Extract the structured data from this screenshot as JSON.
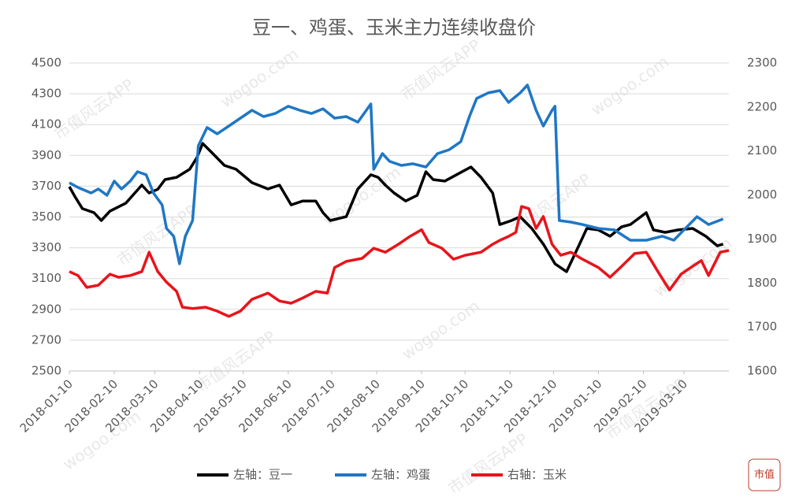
{
  "chart_data": {
    "type": "line",
    "title": "豆一、鸡蛋、玉米主力连续收盘价",
    "watermark": "市值风云APP",
    "watermark_site": "wogoo.com",
    "logo": "市值",
    "xlim": [
      "2018-01-10",
      "2019-04-10"
    ],
    "xticks": [
      "2018-01-10",
      "2018-02-10",
      "2018-03-10",
      "2018-04-10",
      "2018-05-10",
      "2018-06-10",
      "2018-07-10",
      "2018-08-10",
      "2018-09-10",
      "2018-10-10",
      "2018-11-10",
      "2018-12-10",
      "2019-01-10",
      "2019-02-10",
      "2019-03-10"
    ],
    "ylim": [
      2500,
      4500
    ],
    "yticks": [
      2500,
      2700,
      2900,
      3100,
      3300,
      3500,
      3700,
      3900,
      4100,
      4300,
      4500
    ],
    "y2lim": [
      1600,
      2300
    ],
    "y2ticks": [
      1600,
      1700,
      1800,
      1900,
      2000,
      2100,
      2200,
      2300
    ],
    "grid": true,
    "legend": "bottom",
    "series": [
      {
        "name": "左轴：豆一",
        "color": "#000000",
        "axis": "y",
        "x": [
          "2018-01-10",
          "2018-01-14",
          "2018-01-19",
          "2018-01-27",
          "2018-02-01",
          "2018-02-07",
          "2018-02-18",
          "2018-03-01",
          "2018-03-06",
          "2018-03-12",
          "2018-03-17",
          "2018-03-25",
          "2018-04-03",
          "2018-04-08",
          "2018-04-12",
          "2018-04-19",
          "2018-04-27",
          "2018-05-05",
          "2018-05-16",
          "2018-05-27",
          "2018-06-04",
          "2018-06-12",
          "2018-06-20",
          "2018-06-29",
          "2018-07-04",
          "2018-07-09",
          "2018-07-20",
          "2018-07-28",
          "2018-08-06",
          "2018-08-11",
          "2018-08-16",
          "2018-08-22",
          "2018-08-30",
          "2018-09-07",
          "2018-09-13",
          "2018-09-18",
          "2018-09-26",
          "2018-10-04",
          "2018-10-14",
          "2018-10-21",
          "2018-10-29",
          "2018-11-03",
          "2018-11-11",
          "2018-11-17",
          "2018-11-25",
          "2018-12-03",
          "2018-12-11",
          "2018-12-19",
          "2018-12-28",
          "2019-01-02",
          "2019-01-10",
          "2019-01-18",
          "2019-01-26",
          "2019-02-01",
          "2019-02-12",
          "2019-02-17",
          "2019-02-25",
          "2019-03-06",
          "2019-03-16",
          "2019-03-25",
          "2019-04-02",
          "2019-04-06"
        ],
        "values": [
          3697,
          3630,
          3554,
          3528,
          3477,
          3538,
          3590,
          3707,
          3656,
          3680,
          3743,
          3758,
          3810,
          3886,
          3978,
          3912,
          3835,
          3810,
          3723,
          3682,
          3707,
          3579,
          3604,
          3604,
          3528,
          3477,
          3502,
          3682,
          3774,
          3758,
          3707,
          3656,
          3604,
          3641,
          3794,
          3743,
          3733,
          3774,
          3825,
          3758,
          3656,
          3451,
          3477,
          3502,
          3426,
          3324,
          3196,
          3145,
          3324,
          3426,
          3416,
          3375,
          3436,
          3451,
          3528,
          3416,
          3400,
          3416,
          3426,
          3375,
          3313,
          3324
        ]
      },
      {
        "name": "左轴：鸡蛋",
        "color": "#1f77c4",
        "axis": "y",
        "x": [
          "2018-01-10",
          "2018-01-16",
          "2018-01-25",
          "2018-01-30",
          "2018-02-05",
          "2018-02-10",
          "2018-02-15",
          "2018-02-21",
          "2018-02-26",
          "2018-03-04",
          "2018-03-09",
          "2018-03-15",
          "2018-03-18",
          "2018-03-23",
          "2018-03-27",
          "2018-03-31",
          "2018-04-05",
          "2018-04-09",
          "2018-04-15",
          "2018-04-22",
          "2018-04-30",
          "2018-05-08",
          "2018-05-16",
          "2018-05-24",
          "2018-06-01",
          "2018-06-10",
          "2018-06-18",
          "2018-06-26",
          "2018-07-04",
          "2018-07-12",
          "2018-07-20",
          "2018-07-28",
          "2018-08-06",
          "2018-08-08",
          "2018-08-14",
          "2018-08-19",
          "2018-08-27",
          "2018-09-04",
          "2018-09-13",
          "2018-09-21",
          "2018-09-29",
          "2018-10-07",
          "2018-10-13",
          "2018-10-18",
          "2018-10-26",
          "2018-11-03",
          "2018-11-09",
          "2018-11-17",
          "2018-11-22",
          "2018-11-28",
          "2018-12-03",
          "2018-12-09",
          "2018-12-11",
          "2018-12-14",
          "2018-12-22",
          "2018-12-30",
          "2019-01-10",
          "2019-01-21",
          "2019-02-01",
          "2019-02-12",
          "2019-02-23",
          "2019-03-03",
          "2019-03-11",
          "2019-03-19",
          "2019-03-27",
          "2019-04-06"
        ],
        "values": [
          3722,
          3692,
          3656,
          3682,
          3641,
          3733,
          3682,
          3733,
          3794,
          3774,
          3656,
          3579,
          3426,
          3375,
          3196,
          3375,
          3477,
          3963,
          4081,
          4040,
          4091,
          4142,
          4193,
          4152,
          4172,
          4219,
          4193,
          4172,
          4203,
          4142,
          4152,
          4116,
          4234,
          3810,
          3912,
          3861,
          3835,
          3846,
          3825,
          3912,
          3937,
          3989,
          4152,
          4270,
          4306,
          4321,
          4244,
          4306,
          4357,
          4193,
          4091,
          4193,
          4219,
          3477,
          3467,
          3451,
          3426,
          3416,
          3349,
          3349,
          3375,
          3349,
          3426,
          3502,
          3451,
          3487
        ]
      },
      {
        "name": "右轴：玉米",
        "color": "#e8141b",
        "axis": "y2",
        "x": [
          "2018-01-10",
          "2018-01-16",
          "2018-01-22",
          "2018-01-30",
          "2018-02-07",
          "2018-02-13",
          "2018-02-21",
          "2018-03-01",
          "2018-03-06",
          "2018-03-12",
          "2018-03-18",
          "2018-03-25",
          "2018-03-29",
          "2018-04-05",
          "2018-04-14",
          "2018-04-22",
          "2018-04-30",
          "2018-05-08",
          "2018-05-16",
          "2018-05-27",
          "2018-06-04",
          "2018-06-12",
          "2018-06-20",
          "2018-06-29",
          "2018-07-07",
          "2018-07-12",
          "2018-07-20",
          "2018-07-31",
          "2018-08-08",
          "2018-08-16",
          "2018-08-25",
          "2018-09-02",
          "2018-09-10",
          "2018-09-15",
          "2018-09-24",
          "2018-10-02",
          "2018-10-10",
          "2018-10-21",
          "2018-10-29",
          "2018-11-03",
          "2018-11-09",
          "2018-11-14",
          "2018-11-18",
          "2018-11-23",
          "2018-11-28",
          "2018-12-03",
          "2018-12-09",
          "2018-12-15",
          "2018-12-22",
          "2018-12-30",
          "2019-01-10",
          "2019-01-18",
          "2019-01-26",
          "2019-02-04",
          "2019-02-12",
          "2019-02-20",
          "2019-02-28",
          "2019-03-08",
          "2019-03-16",
          "2019-03-22",
          "2019-03-27",
          "2019-04-04",
          "2019-04-10"
        ],
        "values": [
          1826,
          1817,
          1790,
          1795,
          1820,
          1813,
          1817,
          1826,
          1870,
          1826,
          1802,
          1781,
          1745,
          1742,
          1745,
          1736,
          1724,
          1736,
          1763,
          1777,
          1759,
          1754,
          1766,
          1781,
          1777,
          1835,
          1849,
          1856,
          1879,
          1870,
          1888,
          1906,
          1921,
          1892,
          1879,
          1854,
          1863,
          1870,
          1888,
          1897,
          1906,
          1915,
          1974,
          1969,
          1924,
          1951,
          1888,
          1863,
          1870,
          1854,
          1835,
          1813,
          1838,
          1867,
          1870,
          1826,
          1784,
          1820,
          1838,
          1851,
          1817,
          1870,
          1874
        ]
      }
    ]
  }
}
